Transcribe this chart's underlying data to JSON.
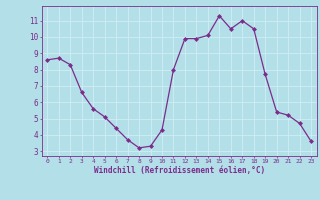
{
  "x": [
    0,
    1,
    2,
    3,
    4,
    5,
    6,
    7,
    8,
    9,
    10,
    11,
    12,
    13,
    14,
    15,
    16,
    17,
    18,
    19,
    20,
    21,
    22,
    23
  ],
  "y": [
    8.6,
    8.7,
    8.3,
    6.6,
    5.6,
    5.1,
    4.4,
    3.7,
    3.2,
    3.3,
    4.3,
    8.0,
    9.9,
    9.9,
    10.1,
    11.3,
    10.5,
    11.0,
    10.5,
    7.7,
    5.4,
    5.2,
    4.7,
    3.6
  ],
  "line_color": "#7b2d8b",
  "marker": "D",
  "marker_size": 2.0,
  "bg_color": "#b2dfe8",
  "grid_color": "#d0eef4",
  "xlabel": "Windchill (Refroidissement éolien,°C)",
  "ylabel_ticks": [
    3,
    4,
    5,
    6,
    7,
    8,
    9,
    10,
    11
  ],
  "xlim": [
    -0.5,
    23.5
  ],
  "ylim": [
    2.7,
    11.9
  ],
  "text_color": "#7b2d8b",
  "spine_color": "#7b2d8b",
  "xlabel_fontsize": 5.5,
  "ytick_fontsize": 5.5,
  "xtick_fontsize": 4.5
}
